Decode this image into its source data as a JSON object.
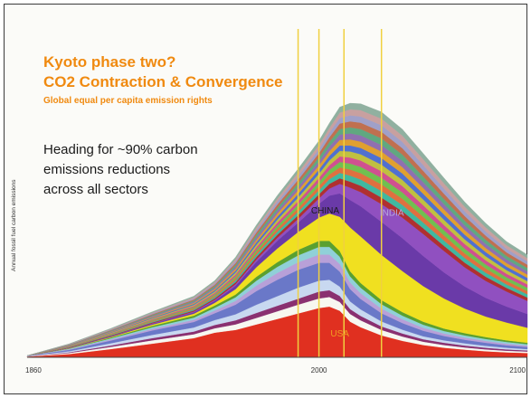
{
  "chart_data": {
    "type": "area",
    "stacked": true,
    "title": "Kyoto phase two?",
    "subtitle_main": "CO2 Contraction & Convergence",
    "subtitle_small": "Global equal per capita emission rights",
    "annotation_lines": [
      "Heading for ~90% carbon",
      "emissions reductions",
      "across all sectors"
    ],
    "ylabel": "Annual fossil fuel carbon emissions",
    "xlabel": "",
    "x_ticks": [
      "1860",
      "2000",
      "2100"
    ],
    "xlim": [
      1860,
      2100
    ],
    "ylim": [
      0,
      1
    ],
    "grid": false,
    "legend": "none",
    "x": [
      1860,
      1880,
      1900,
      1920,
      1940,
      1950,
      1960,
      1970,
      1980,
      1990,
      2000,
      2005,
      2010,
      2015,
      2020,
      2030,
      2040,
      2050,
      2060,
      2070,
      2080,
      2090,
      2100
    ],
    "series": [
      {
        "name": "USA",
        "color": "#e03020",
        "values": [
          0.003,
          0.012,
          0.03,
          0.05,
          0.07,
          0.09,
          0.1,
          0.12,
          0.14,
          0.16,
          0.18,
          0.185,
          0.17,
          0.13,
          0.11,
          0.08,
          0.06,
          0.045,
          0.035,
          0.028,
          0.022,
          0.018,
          0.016
        ]
      },
      {
        "name": "",
        "color": "#f7f7f0",
        "values": [
          0.001,
          0.004,
          0.008,
          0.012,
          0.014,
          0.016,
          0.02,
          0.024,
          0.028,
          0.032,
          0.035,
          0.035,
          0.032,
          0.028,
          0.025,
          0.02,
          0.016,
          0.012,
          0.01,
          0.008,
          0.007,
          0.006,
          0.005
        ]
      },
      {
        "name": "",
        "color": "#8a3070",
        "values": [
          0.0,
          0.002,
          0.005,
          0.008,
          0.01,
          0.012,
          0.015,
          0.018,
          0.02,
          0.022,
          0.025,
          0.025,
          0.022,
          0.018,
          0.016,
          0.013,
          0.011,
          0.009,
          0.008,
          0.007,
          0.006,
          0.005,
          0.004
        ]
      },
      {
        "name": "",
        "color": "#c8d8f0",
        "values": [
          0.001,
          0.004,
          0.008,
          0.012,
          0.015,
          0.018,
          0.022,
          0.03,
          0.035,
          0.04,
          0.04,
          0.038,
          0.034,
          0.028,
          0.024,
          0.018,
          0.014,
          0.011,
          0.009,
          0.008,
          0.007,
          0.006,
          0.005
        ]
      },
      {
        "name": "",
        "color": "#6a78c8",
        "values": [
          0.001,
          0.005,
          0.01,
          0.016,
          0.02,
          0.025,
          0.035,
          0.05,
          0.06,
          0.065,
          0.065,
          0.062,
          0.055,
          0.045,
          0.038,
          0.03,
          0.024,
          0.02,
          0.016,
          0.013,
          0.011,
          0.009,
          0.008
        ]
      },
      {
        "name": "",
        "color": "#b8a0d8",
        "values": [
          0.0,
          0.002,
          0.004,
          0.006,
          0.008,
          0.01,
          0.014,
          0.02,
          0.025,
          0.028,
          0.03,
          0.03,
          0.028,
          0.024,
          0.021,
          0.017,
          0.014,
          0.011,
          0.009,
          0.008,
          0.007,
          0.006,
          0.005
        ]
      },
      {
        "name": "",
        "color": "#90d0d8",
        "values": [
          0.0,
          0.002,
          0.004,
          0.006,
          0.008,
          0.01,
          0.013,
          0.018,
          0.022,
          0.025,
          0.028,
          0.028,
          0.026,
          0.022,
          0.02,
          0.016,
          0.013,
          0.011,
          0.009,
          0.008,
          0.007,
          0.006,
          0.005
        ]
      },
      {
        "name": "",
        "color": "#5aa030",
        "values": [
          0.0,
          0.001,
          0.003,
          0.005,
          0.007,
          0.008,
          0.01,
          0.014,
          0.017,
          0.02,
          0.022,
          0.022,
          0.021,
          0.019,
          0.017,
          0.015,
          0.013,
          0.011,
          0.009,
          0.008,
          0.007,
          0.006,
          0.005
        ]
      },
      {
        "name": "",
        "color": "#f0e020",
        "values": [
          0.0,
          0.001,
          0.002,
          0.004,
          0.007,
          0.01,
          0.02,
          0.035,
          0.05,
          0.065,
          0.085,
          0.1,
          0.125,
          0.16,
          0.17,
          0.165,
          0.15,
          0.13,
          0.11,
          0.09,
          0.075,
          0.065,
          0.055
        ]
      },
      {
        "name": "CHINA",
        "color": "#6a3aa8",
        "values": [
          0.0,
          0.001,
          0.002,
          0.003,
          0.005,
          0.007,
          0.012,
          0.02,
          0.028,
          0.034,
          0.05,
          0.065,
          0.085,
          0.1,
          0.11,
          0.12,
          0.12,
          0.11,
          0.095,
          0.08,
          0.068,
          0.058,
          0.05
        ]
      },
      {
        "name": "INDIA",
        "color": "#9050c0",
        "values": [
          0.0,
          0.001,
          0.001,
          0.002,
          0.003,
          0.004,
          0.006,
          0.008,
          0.011,
          0.014,
          0.02,
          0.026,
          0.035,
          0.045,
          0.052,
          0.065,
          0.075,
          0.08,
          0.078,
          0.07,
          0.062,
          0.055,
          0.048
        ]
      },
      {
        "name": "",
        "color": "#b03030",
        "values": [
          0.0,
          0.001,
          0.002,
          0.003,
          0.004,
          0.005,
          0.007,
          0.009,
          0.011,
          0.013,
          0.015,
          0.017,
          0.02,
          0.022,
          0.023,
          0.024,
          0.023,
          0.021,
          0.019,
          0.017,
          0.015,
          0.013,
          0.012
        ]
      },
      {
        "name": "",
        "color": "#40b8a0",
        "values": [
          0.0,
          0.001,
          0.002,
          0.003,
          0.004,
          0.005,
          0.007,
          0.009,
          0.011,
          0.013,
          0.015,
          0.017,
          0.02,
          0.022,
          0.023,
          0.024,
          0.023,
          0.021,
          0.019,
          0.017,
          0.015,
          0.013,
          0.012
        ]
      },
      {
        "name": "",
        "color": "#e07040",
        "values": [
          0.0,
          0.001,
          0.002,
          0.003,
          0.004,
          0.005,
          0.007,
          0.009,
          0.011,
          0.013,
          0.015,
          0.017,
          0.02,
          0.022,
          0.023,
          0.024,
          0.023,
          0.021,
          0.019,
          0.017,
          0.015,
          0.013,
          0.012
        ]
      },
      {
        "name": "",
        "color": "#70c050",
        "values": [
          0.0,
          0.001,
          0.002,
          0.003,
          0.004,
          0.005,
          0.007,
          0.009,
          0.011,
          0.013,
          0.015,
          0.017,
          0.02,
          0.022,
          0.023,
          0.024,
          0.023,
          0.021,
          0.019,
          0.017,
          0.015,
          0.013,
          0.012
        ]
      },
      {
        "name": "",
        "color": "#d05090",
        "values": [
          0.0,
          0.001,
          0.002,
          0.003,
          0.004,
          0.005,
          0.007,
          0.009,
          0.011,
          0.013,
          0.015,
          0.017,
          0.02,
          0.022,
          0.023,
          0.024,
          0.023,
          0.021,
          0.019,
          0.017,
          0.015,
          0.013,
          0.012
        ]
      },
      {
        "name": "",
        "color": "#c0c040",
        "values": [
          0.0,
          0.001,
          0.002,
          0.003,
          0.004,
          0.005,
          0.007,
          0.009,
          0.011,
          0.013,
          0.015,
          0.017,
          0.02,
          0.022,
          0.023,
          0.024,
          0.023,
          0.021,
          0.019,
          0.017,
          0.015,
          0.013,
          0.012
        ]
      },
      {
        "name": "",
        "color": "#5070d0",
        "values": [
          0.0,
          0.001,
          0.002,
          0.003,
          0.004,
          0.005,
          0.007,
          0.009,
          0.011,
          0.013,
          0.015,
          0.017,
          0.02,
          0.022,
          0.023,
          0.024,
          0.023,
          0.021,
          0.019,
          0.017,
          0.015,
          0.013,
          0.012
        ]
      },
      {
        "name": "",
        "color": "#e0a030",
        "values": [
          0.0,
          0.001,
          0.002,
          0.003,
          0.004,
          0.005,
          0.007,
          0.009,
          0.011,
          0.013,
          0.015,
          0.017,
          0.02,
          0.022,
          0.023,
          0.024,
          0.023,
          0.021,
          0.019,
          0.017,
          0.015,
          0.013,
          0.012
        ]
      },
      {
        "name": "",
        "color": "#9070b0",
        "values": [
          0.0,
          0.001,
          0.002,
          0.003,
          0.004,
          0.005,
          0.007,
          0.009,
          0.011,
          0.013,
          0.015,
          0.017,
          0.02,
          0.022,
          0.023,
          0.024,
          0.023,
          0.021,
          0.019,
          0.017,
          0.015,
          0.013,
          0.012
        ]
      },
      {
        "name": "",
        "color": "#60a880",
        "values": [
          0.0,
          0.001,
          0.002,
          0.003,
          0.004,
          0.005,
          0.007,
          0.009,
          0.011,
          0.013,
          0.015,
          0.017,
          0.02,
          0.022,
          0.023,
          0.024,
          0.023,
          0.021,
          0.019,
          0.017,
          0.015,
          0.013,
          0.012
        ]
      },
      {
        "name": "",
        "color": "#c07050",
        "values": [
          0.0,
          0.001,
          0.002,
          0.003,
          0.004,
          0.005,
          0.007,
          0.009,
          0.011,
          0.013,
          0.015,
          0.017,
          0.02,
          0.022,
          0.023,
          0.024,
          0.023,
          0.021,
          0.019,
          0.017,
          0.015,
          0.013,
          0.012
        ]
      },
      {
        "name": "",
        "color": "#a0a0c8",
        "values": [
          0.0,
          0.001,
          0.002,
          0.003,
          0.004,
          0.005,
          0.007,
          0.009,
          0.011,
          0.013,
          0.015,
          0.017,
          0.02,
          0.022,
          0.023,
          0.024,
          0.023,
          0.021,
          0.019,
          0.017,
          0.015,
          0.013,
          0.012
        ]
      },
      {
        "name": "",
        "color": "#c8a0a0",
        "values": [
          0.0,
          0.001,
          0.002,
          0.003,
          0.004,
          0.005,
          0.007,
          0.009,
          0.011,
          0.013,
          0.015,
          0.017,
          0.02,
          0.022,
          0.023,
          0.024,
          0.023,
          0.021,
          0.019,
          0.017,
          0.015,
          0.013,
          0.012
        ]
      },
      {
        "name": "",
        "color": "#90b0a0",
        "values": [
          0.0,
          0.001,
          0.002,
          0.003,
          0.004,
          0.005,
          0.007,
          0.009,
          0.011,
          0.013,
          0.015,
          0.017,
          0.02,
          0.022,
          0.023,
          0.024,
          0.023,
          0.021,
          0.019,
          0.017,
          0.015,
          0.013,
          0.012
        ]
      }
    ],
    "vertical_lines": [
      {
        "x": 1990,
        "color": "#f0d040"
      },
      {
        "x": 2000,
        "color": "#f0d040"
      },
      {
        "x": 2012,
        "color": "#f0d040"
      },
      {
        "x": 2030,
        "color": "#f0d040"
      }
    ],
    "label_colors": {
      "CHINA": "#1a1a1a",
      "INDIA": "#b8a8e0",
      "USA": "#f0a020"
    }
  }
}
